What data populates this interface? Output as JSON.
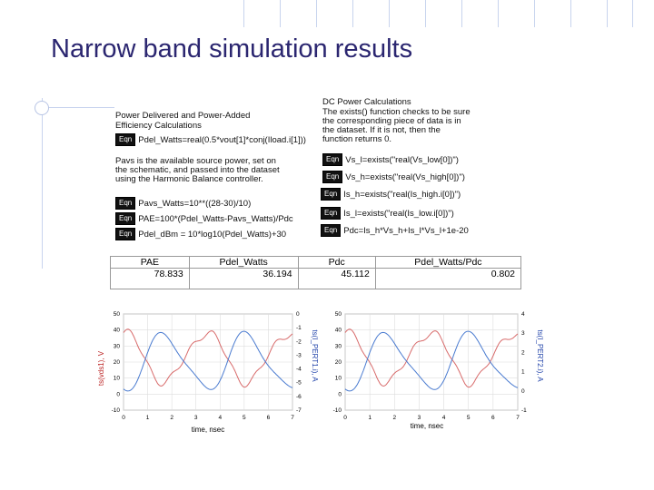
{
  "title": "Narrow band simulation results",
  "left_panel": {
    "heading_lines": [
      "Power Delivered and Power-Added",
      "Efficiency Calculations"
    ],
    "eqn_label": "Eqn",
    "eqn1": "Pdel_Watts=real(0.5*vout[1]*conj(Iload.i[1]))",
    "note_lines": [
      "Pavs is the available source power, set on",
      "the schematic, and passed into the dataset",
      "using the Harmonic Balance controller."
    ],
    "eqn2": "Pavs_Watts=10**((28-30)/10)",
    "eqn3": "PAE=100*(Pdel_Watts-Pavs_Watts)/Pdc",
    "eqn4": "Pdel_dBm = 10*log10(Pdel_Watts)+30"
  },
  "right_panel": {
    "heading": "DC Power Calculations",
    "note_lines": [
      "The exists() function checks to be sure",
      "the corresponding piece of data is in",
      "the dataset. If it is not, then the",
      "function returns 0."
    ],
    "eqn1": "Vs_l=exists(\"real(Vs_low[0])\")",
    "eqn2": "Vs_h=exists(\"real(Vs_high[0])\")",
    "eqn3": "Is_h=exists(\"real(Is_high.i[0])\")",
    "eqn4": "Is_l=exists(\"real(Is_low.i[0])\")",
    "eqn5": "Pdc=Is_h*Vs_h+Is_l*Vs_l+1e-20"
  },
  "results_table": {
    "headers": [
      "PAE",
      "Pdel_Watts",
      "Pdc",
      "Pdel_Watts/Pdc"
    ],
    "values": [
      "78.833",
      "36.194",
      "45.112",
      "0.802"
    ]
  },
  "plot_left": {
    "ylabel_left": "ts(vds1), V",
    "ylabel_right": "ts(I_PERT1.i), A",
    "xlabel": "time, nsec",
    "left_ticks": [
      "50",
      "40",
      "30",
      "20",
      "10",
      "0",
      "-10"
    ],
    "right_ticks": [
      "0",
      "-1",
      "-2",
      "-3",
      "-4",
      "-5",
      "-6",
      "-7"
    ],
    "x_ticks": [
      "0",
      "1",
      "2",
      "3",
      "4",
      "5",
      "6",
      "7"
    ],
    "line_color_v": "#d86b6b",
    "line_color_i": "#4a7bd0"
  },
  "plot_right": {
    "ylabel_right": "ts(I_PERT2.i), A",
    "xlabel": "time, nsec",
    "left_ticks": [
      "50",
      "40",
      "30",
      "20",
      "10",
      "0",
      "-10"
    ],
    "right_ticks": [
      "4",
      "3",
      "2",
      "1",
      "0",
      "-1"
    ],
    "x_ticks": [
      "0",
      "1",
      "2",
      "3",
      "4",
      "5",
      "6",
      "7"
    ],
    "line_color_v": "#d86b6b",
    "line_color_i": "#4a7bd0"
  }
}
